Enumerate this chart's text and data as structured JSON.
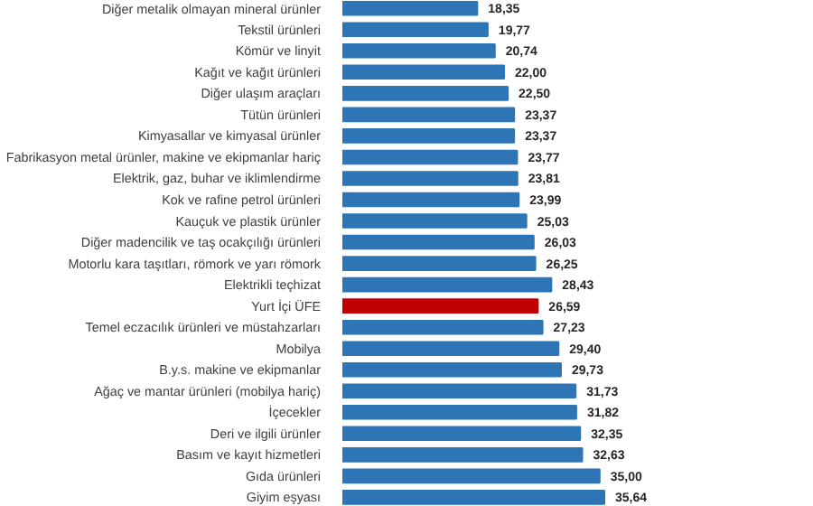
{
  "chart_data": {
    "type": "bar",
    "orientation": "horizontal",
    "categories": [
      "Diğer metalik olmayan mineral ürünler",
      "Tekstil ürünleri",
      "Kömür ve linyit",
      "Kağıt ve kağıt ürünleri",
      "Diğer ulaşım araçları",
      "Tütün ürünleri",
      "Kimyasallar ve kimyasal ürünler",
      "Fabrikasyon metal ürünler, makine ve ekipmanlar hariç",
      "Elektrik, gaz, buhar ve iklimlendirme",
      "Kok ve rafine petrol ürünleri",
      "Kauçuk ve plastik ürünler",
      "Diğer madencilik ve taş ocakçılığı ürünleri",
      "Motorlu kara taşıtları, römork ve yarı römork",
      "Elektrikli teçhizat",
      "Yurt İçi ÜFE",
      "Temel eczacılık ürünleri ve müstahzarları",
      "Mobilya",
      "B.y.s. makine ve ekipmanlar",
      "Ağaç ve mantar ürünleri (mobilya hariç)",
      "İçecekler",
      "Deri ve ilgili ürünler",
      "Basım ve kayıt hizmetleri",
      "Gıda ürünleri",
      "Giyim eşyası"
    ],
    "values": [
      18.35,
      19.77,
      20.74,
      22.0,
      22.5,
      23.37,
      23.37,
      23.77,
      23.81,
      23.99,
      25.03,
      26.03,
      26.25,
      28.43,
      26.59,
      27.23,
      29.4,
      29.73,
      31.73,
      31.82,
      32.35,
      32.63,
      35.0,
      35.64
    ],
    "value_labels": [
      "18,35",
      "19,77",
      "20,74",
      "22,00",
      "22,50",
      "23,37",
      "23,37",
      "23,77",
      "23,81",
      "23,99",
      "25,03",
      "26,03",
      "26,25",
      "28,43",
      "26,59",
      "27,23",
      "29,40",
      "29,73",
      "31,73",
      "31,82",
      "32,35",
      "32,63",
      "35,00",
      "35,64"
    ],
    "colors": [
      "#2e75b6",
      "#2e75b6",
      "#2e75b6",
      "#2e75b6",
      "#2e75b6",
      "#2e75b6",
      "#2e75b6",
      "#2e75b6",
      "#2e75b6",
      "#2e75b6",
      "#2e75b6",
      "#2e75b6",
      "#2e75b6",
      "#2e75b6",
      "#c00000",
      "#2e75b6",
      "#2e75b6",
      "#2e75b6",
      "#2e75b6",
      "#2e75b6",
      "#2e75b6",
      "#2e75b6",
      "#2e75b6",
      "#2e75b6"
    ]
  }
}
